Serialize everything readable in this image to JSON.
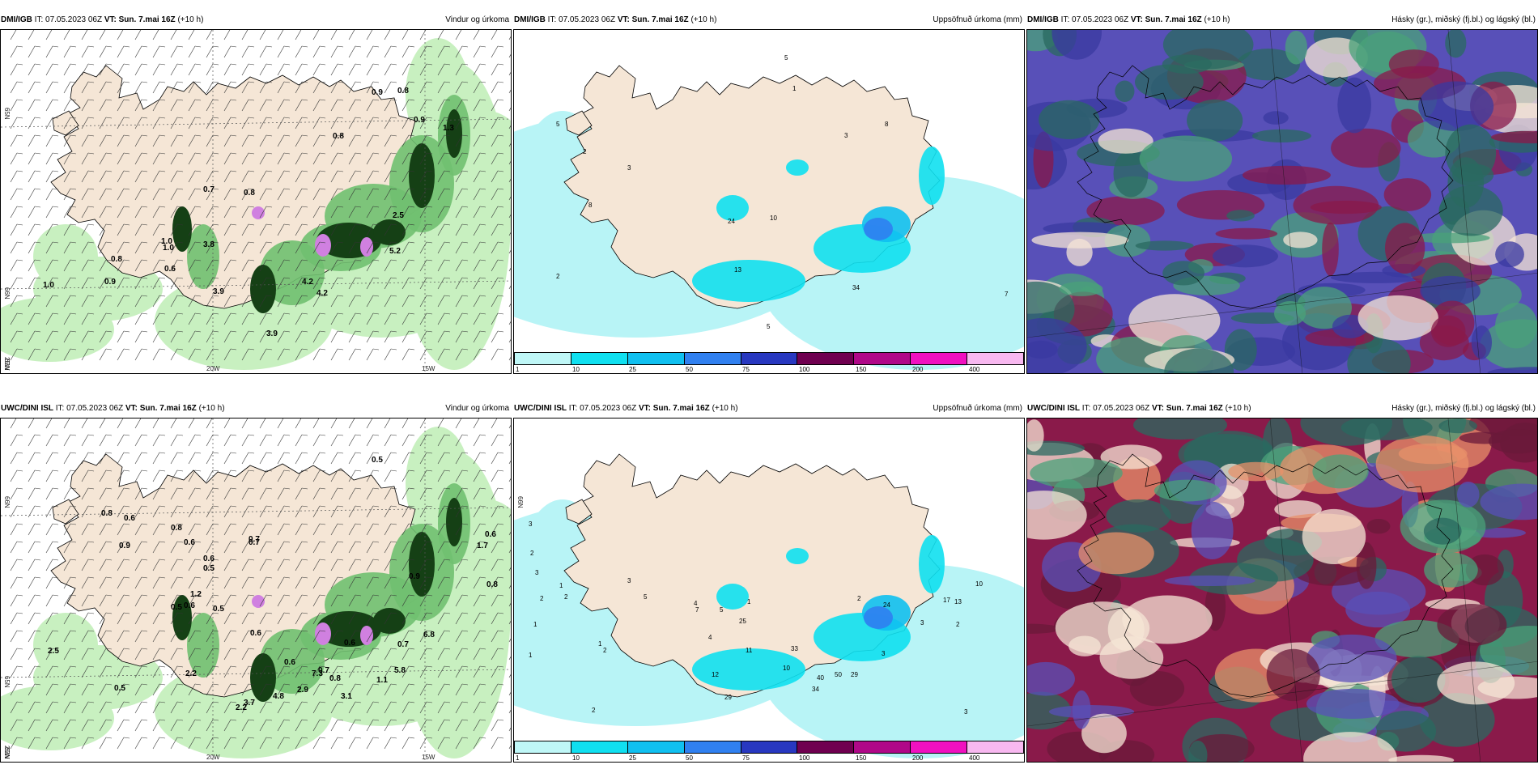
{
  "panels": [
    {
      "model": "DMI/IGB",
      "it": "IT: 07.05.2023 06Z",
      "vt_label": "VT:",
      "vt": "Sun. 7.mai 16Z",
      "lead": "(+10 h)",
      "title": "Vindur og úrkoma",
      "kind": "wind",
      "lat_labels": [
        "65N",
        "66N",
        "63N"
      ],
      "lon_labels": [
        "25W",
        "20W",
        "15W"
      ],
      "values": [
        "0.9",
        "0.8",
        "0.8",
        "0.9",
        "1.3",
        "0.7",
        "0.8",
        "1.0",
        "0.8",
        "1.0",
        "0.6",
        "0.9",
        "1.0",
        "3.8",
        "4.2",
        "3.9",
        "5.2",
        "4.2",
        "3.9",
        "2.5"
      ]
    },
    {
      "model": "DMI/IGB",
      "it": "IT: 07.05.2023 06Z",
      "vt_label": "VT:",
      "vt": "Sun. 7.mai 16Z",
      "lead": "(+10 h)",
      "title": "Uppsöfnuð úrkoma (mm)",
      "kind": "precip",
      "lat_labels": [],
      "lon_labels": [],
      "values": [
        "2",
        "5",
        "3",
        "5",
        "1",
        "3",
        "8",
        "8",
        "24",
        "10",
        "13",
        "2",
        "34",
        "7",
        "5"
      ]
    },
    {
      "model": "DMI/IGB",
      "it": "IT: 07.05.2023 06Z",
      "vt_label": "VT:",
      "vt": "Sun. 7.mai 16Z",
      "lead": "(+10 h)",
      "title": "Hásky (gr.), miðský (fj.bl.) og lágský (bl.)",
      "kind": "cloud",
      "lat_labels": [],
      "lon_labels": [],
      "values": []
    },
    {
      "model": "UWC/DINI ISL",
      "it": "IT: 07.05.2023 06Z",
      "vt_label": "VT:",
      "vt": "Sun. 7.mai 16Z",
      "lead": "(+10 h)",
      "title": "Vindur og úrkoma",
      "kind": "wind",
      "lat_labels": [
        "66N",
        "65N",
        "63N"
      ],
      "lon_labels": [
        "25W",
        "20W",
        "15W"
      ],
      "values": [
        "0.5",
        "0.8",
        "0.6",
        "0.8",
        "0.6",
        "0.7",
        "0.6",
        "0.5",
        "0.7",
        "0.9",
        "1.2",
        "0.5",
        "0.6",
        "0.5",
        "0.6",
        "0.8",
        "0.7",
        "0.6",
        "0.7",
        "1.1",
        "0.9",
        "0.6",
        "0.5",
        "2.2",
        "1.7",
        "0.6",
        "7.3",
        "4.8",
        "2.9",
        "6.8",
        "5.8",
        "3.1",
        "2.5",
        "3.7",
        "2.2",
        "0.8",
        "0.6"
      ]
    },
    {
      "model": "UWC/DINI ISL",
      "it": "IT: 07.05.2023 06Z",
      "vt_label": "VT:",
      "vt": "Sun. 7.mai 16Z",
      "lead": "(+10 h)",
      "title": "Uppsöfnuð úrkoma (mm)",
      "kind": "precip",
      "lat_labels": [
        "66N"
      ],
      "lon_labels": [],
      "values": [
        "3",
        "2",
        "3",
        "2",
        "1",
        "1",
        "2",
        "3",
        "5",
        "4",
        "7",
        "5",
        "1",
        "1",
        "2",
        "12",
        "25",
        "11",
        "4",
        "33",
        "10",
        "40",
        "34",
        "29",
        "50",
        "29",
        "24",
        "17",
        "13",
        "10",
        "3",
        "2",
        "3",
        "2",
        "3",
        "1",
        "2"
      ]
    },
    {
      "model": "UWC/DINI ISL",
      "it": "IT: 07.05.2023 06Z",
      "vt_label": "VT:",
      "vt": "Sun. 7.mai 16Z",
      "lead": "(+10 h)",
      "title": "Hásky (gr.), miðský (fj.bl.) og lágský (bl.)",
      "kind": "cloud",
      "lat_labels": [],
      "lon_labels": [],
      "values": []
    }
  ],
  "precip_colorbar": {
    "colors": [
      "#bff7f7",
      "#10e0f0",
      "#10c0f0",
      "#3080f0",
      "#2838c0",
      "#700050",
      "#b00888",
      "#f010c0",
      "#f8b8f0"
    ],
    "ticks": [
      "1",
      "10",
      "25",
      "50",
      "75",
      "100",
      "150",
      "200",
      "400"
    ]
  },
  "colors": {
    "land": "#f5e6d6",
    "sea_precip": "#b8f4f6",
    "green_light": "#c8f0c0",
    "green_mid": "#70c070",
    "green_dark": "#154015",
    "cloud_blue": "#5850b8",
    "cloud_maroon": "#8a1a4a",
    "cloud_teal": "#2a6a60",
    "cloud_green": "#4aa27a"
  }
}
